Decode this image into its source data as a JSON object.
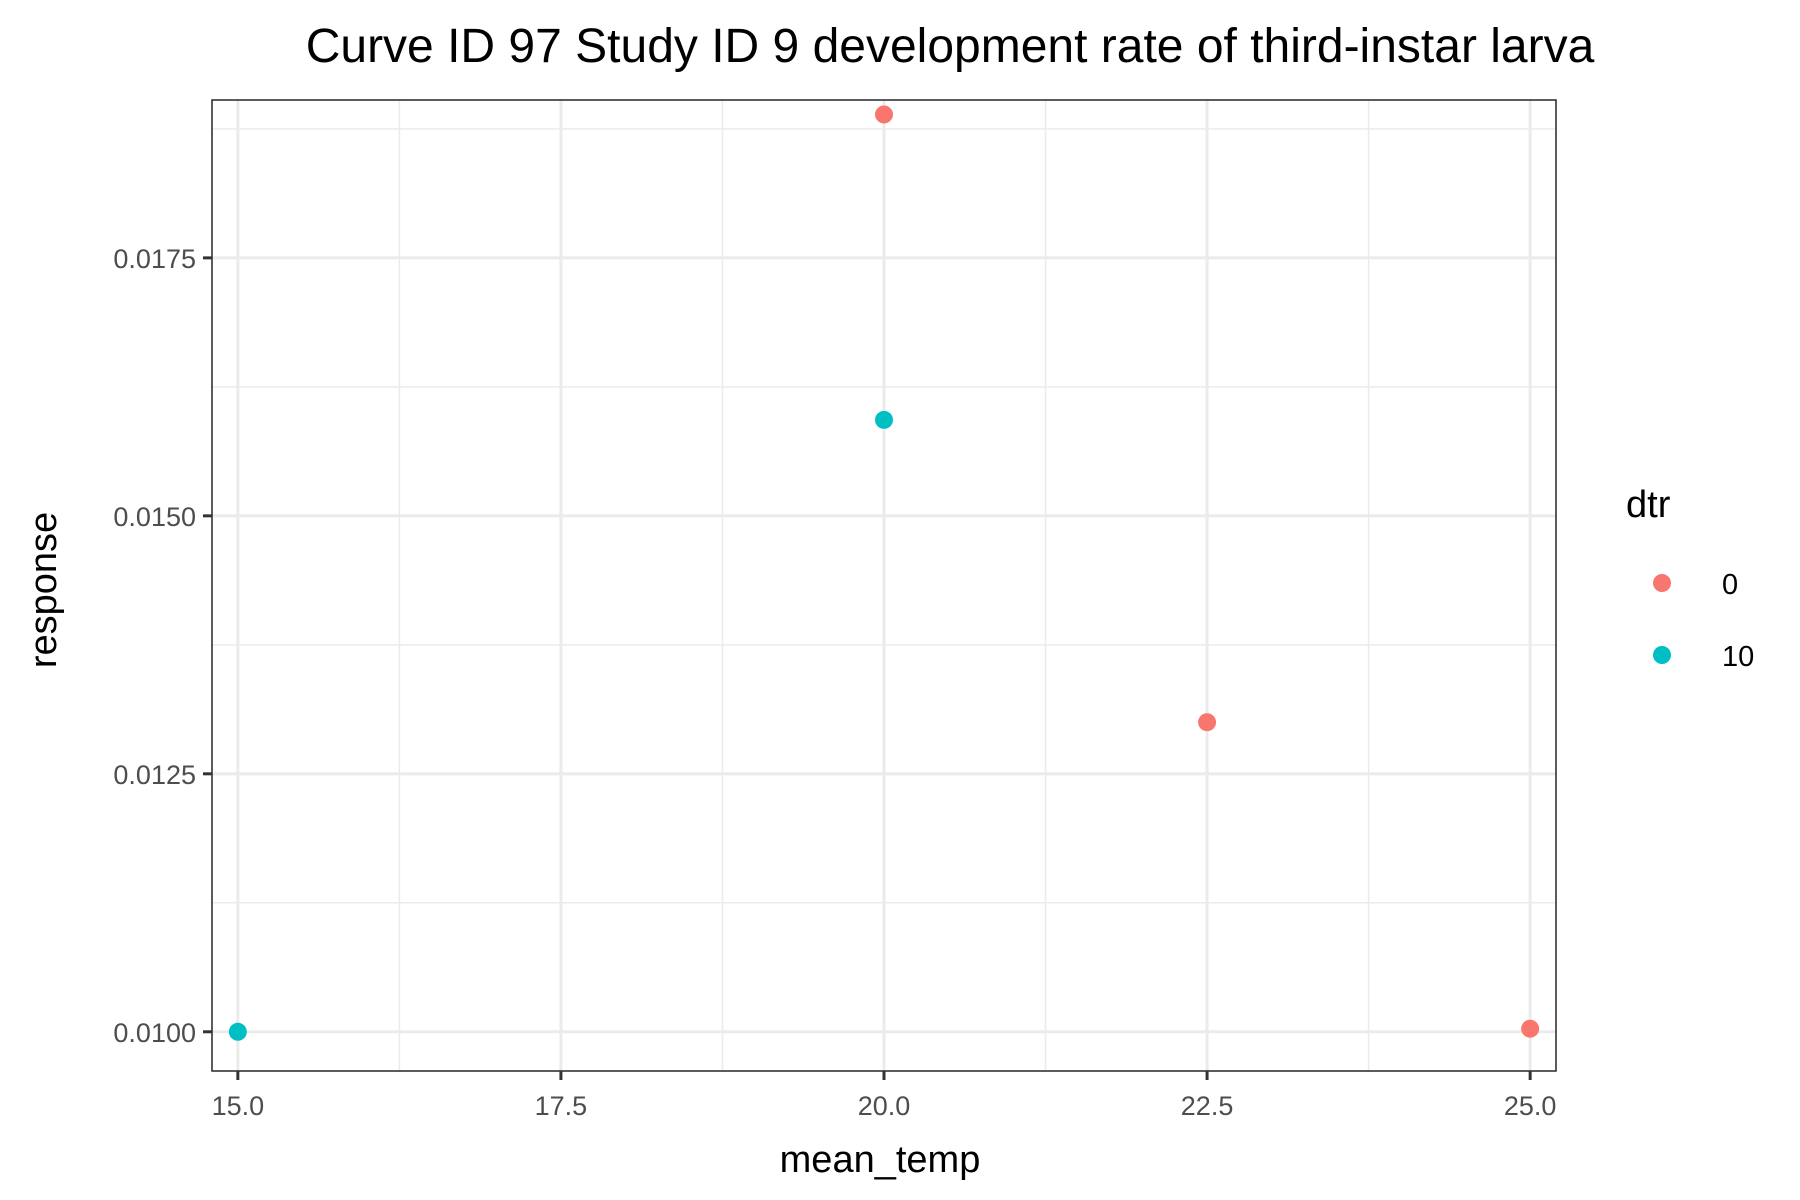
{
  "chart_data": {
    "type": "scatter",
    "title": "Curve ID 97 Study ID 9 development rate of third-instar larva",
    "xlabel": "mean_temp",
    "ylabel": "response",
    "xlim": [
      14.8,
      25.2
    ],
    "ylim": [
      0.00962,
      0.01903
    ],
    "x_ticks": [
      15.0,
      17.5,
      20.0,
      22.5,
      25.0
    ],
    "x_tick_labels": [
      "15.0",
      "17.5",
      "20.0",
      "22.5",
      "25.0"
    ],
    "x_minor_ticks": [
      16.25,
      18.75,
      21.25,
      23.75
    ],
    "y_ticks": [
      0.01,
      0.0125,
      0.015,
      0.0175
    ],
    "y_tick_labels": [
      "0.0100",
      "0.0125",
      "0.0150",
      "0.0175"
    ],
    "y_minor_ticks": [
      0.01125,
      0.01375,
      0.01625,
      0.01875
    ],
    "grid": true,
    "legend": {
      "title": "dtr",
      "placement": "right"
    },
    "series": [
      {
        "name": "0",
        "color": "#F8766D",
        "points": [
          {
            "x": 20.0,
            "y": 0.01889
          },
          {
            "x": 22.5,
            "y": 0.013
          },
          {
            "x": 25.0,
            "y": 0.01003
          }
        ]
      },
      {
        "name": "10",
        "color": "#00BFC4",
        "points": [
          {
            "x": 15.0,
            "y": 0.01
          },
          {
            "x": 20.0,
            "y": 0.01593
          }
        ]
      }
    ]
  }
}
